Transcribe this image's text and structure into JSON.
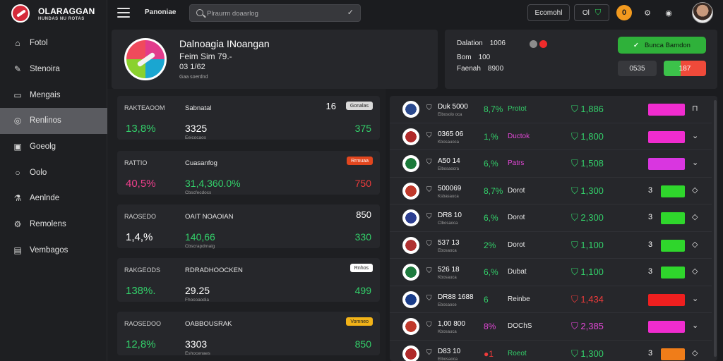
{
  "app": {
    "title": "OLARAGGAN",
    "subtitle": "HUNDAS NU ROTAS"
  },
  "sidebar": {
    "items": [
      {
        "label": "Fotol",
        "icon": "home-icon"
      },
      {
        "label": "Stenoira",
        "icon": "feather-icon"
      },
      {
        "label": "Mengais",
        "icon": "clipboard-icon"
      },
      {
        "label": "Renlinos",
        "icon": "compass-icon"
      },
      {
        "label": "Goeolg",
        "icon": "tablet-icon"
      },
      {
        "label": "Oolo",
        "icon": "search-icon"
      },
      {
        "label": "Aenlnde",
        "icon": "flask-icon"
      },
      {
        "label": "Remolens",
        "icon": "gear-icon"
      },
      {
        "label": "Vembagos",
        "icon": "image-icon"
      }
    ]
  },
  "header": {
    "title": "Panoniae",
    "search_placeholder": "Plraurm doaarlog",
    "btn1": "Ecomohl",
    "btn2": "Ol",
    "notif_count": "0"
  },
  "profile": {
    "name": "Dalnoagia INoangan",
    "line1": "Feim Sim 79.-",
    "line2": "03 1/62",
    "line3": "Gaa soerdnd"
  },
  "stats": {
    "rows": [
      {
        "label": "Dalation",
        "value": "1006"
      },
      {
        "label": "Bom",
        "value": "100"
      },
      {
        "label": "Faenah",
        "value": "8900"
      }
    ],
    "primary_button": "Bunca Bamdon",
    "mini1": "0535",
    "mini2": "187"
  },
  "cards": [
    {
      "h1": "RAKTEAOOM",
      "h2": "Sabnatal",
      "big": "13,8%",
      "bigColor": "#33d06a",
      "val": "3325",
      "valColor": "#ffffff",
      "sub": "Eeicocaos",
      "right": "375",
      "rightColor": "#33d06a",
      "num": "16",
      "badge": "Gonalas",
      "badgeBg": "#d9d9d9",
      "badgeColor": "#222"
    },
    {
      "h1": "RATTIO",
      "h2": "Cuasanfog",
      "big": "40,5%",
      "bigColor": "#ee3f8c",
      "val": "31,4,360.0%",
      "valColor": "#33d06a",
      "sub": "Cbscfecdocs",
      "right": "750",
      "rightColor": "#ef3b3b",
      "num": "",
      "badge": "Rrmuaa",
      "badgeBg": "#e2461e",
      "badgeColor": "#fff"
    },
    {
      "h1": "RAOSEDO",
      "h2": "OAIT NOAOIAN",
      "big": "1,4,%",
      "bigColor": "#ffffff",
      "val": "140,66",
      "valColor": "#33d06a",
      "sub": "Cbscrapdrnaig",
      "right": "330",
      "rightColor": "#33d06a",
      "num": "850",
      "badge": "",
      "badgeBg": "transparent",
      "badgeColor": "#fff"
    },
    {
      "h1": "RAKGEODS",
      "h2": "RDRADHOOCKEN",
      "big": "138%.",
      "bigColor": "#33d06a",
      "val": "29.25",
      "valColor": "#ffffff",
      "sub": "Fhocoaodia",
      "right": "499",
      "rightColor": "#33d06a",
      "num": "",
      "badge": "Rnhos",
      "badgeBg": "#ffffff",
      "badgeColor": "#222"
    },
    {
      "h1": "RAOSEDOO",
      "h2": "OABBOUSRAK",
      "big": "12,8%",
      "bigColor": "#33d06a",
      "val": "3303",
      "valColor": "#ffffff",
      "sub": "Eshocenaes",
      "right": "850",
      "rightColor": "#33d06a",
      "num": "",
      "badge": "Vomneo",
      "badgeBg": "#f2b318",
      "badgeColor": "#222"
    }
  ],
  "list": [
    {
      "t1": "Duk 5000",
      "t2": "Elbosolo oca",
      "pct": "8,7%",
      "pctColor": "#33d06a",
      "tag": "Protot",
      "tagColor": "#33d06a",
      "stat": "1,886",
      "statColor": "#33d06a",
      "mark": "",
      "bar": "#f02ccf",
      "act": "⊓",
      "logo": "#2b4a8f"
    },
    {
      "t1": "0365 06",
      "t2": "Kbosauoca",
      "pct": "1,%",
      "pctColor": "#33d06a",
      "tag": "Ductok",
      "tagColor": "#e247d6",
      "stat": "1,800",
      "statColor": "#33d06a",
      "mark": "",
      "bar": "#f02ccf",
      "act": "⌄",
      "logo": "#b02a2a"
    },
    {
      "t1": "A50 14",
      "t2": "Elbosaocra",
      "pct": "6,%",
      "pctColor": "#33d06a",
      "tag": "Patrs",
      "tagColor": "#e247d6",
      "stat": "1,508",
      "statColor": "#33d06a",
      "mark": "",
      "bar": "#d936e0",
      "act": "⌄",
      "logo": "#1b7a3a"
    },
    {
      "t1": "500069",
      "t2": "Ksbasauca",
      "pct": "8,7%",
      "pctColor": "#33d06a",
      "tag": "Dorot",
      "tagColor": "#e6e6e6",
      "stat": "1,300",
      "statColor": "#33d06a",
      "mark": "3",
      "bar": "#2fd62c",
      "act": "◇",
      "logo": "#c0392b"
    },
    {
      "t1": "DR8 10",
      "t2": "Clbosaoca",
      "pct": "6,%",
      "pctColor": "#33d06a",
      "tag": "Dorot",
      "tagColor": "#e6e6e6",
      "stat": "2,300",
      "statColor": "#33d06a",
      "mark": "3",
      "bar": "#2fd62c",
      "act": "◇",
      "logo": "#2c3e91"
    },
    {
      "t1": "537 13",
      "t2": "Ebosaoca",
      "pct": "2%",
      "pctColor": "#33d06a",
      "tag": "Dorot",
      "tagColor": "#e6e6e6",
      "stat": "1,100",
      "statColor": "#33d06a",
      "mark": "3",
      "bar": "#2fd62c",
      "act": "◇",
      "logo": "#b03030"
    },
    {
      "t1": "526 18",
      "t2": "Kbosauca",
      "pct": "6,%",
      "pctColor": "#33d06a",
      "tag": "Dubat",
      "tagColor": "#e6e6e6",
      "stat": "1,100",
      "statColor": "#33d06a",
      "mark": "3",
      "bar": "#2fd62c",
      "act": "◇",
      "logo": "#1e7a3e"
    },
    {
      "t1": "DR88 1688",
      "t2": "Ebosaoce",
      "pct": "6",
      "pctColor": "#33d06a",
      "tag": "Reinbe",
      "tagColor": "#e6e6e6",
      "stat": "1,434",
      "statColor": "#ef3b3b",
      "mark": "",
      "bar": "#ef1f1f",
      "act": "⌄",
      "logo": "#1a3d8a"
    },
    {
      "t1": "1,00 800",
      "t2": "Kbosauca",
      "pct": "8%",
      "pctColor": "#e247d6",
      "tag": "DOChS",
      "tagColor": "#e6e6e6",
      "stat": "2,385",
      "statColor": "#e247d6",
      "mark": "",
      "bar": "#f02ccf",
      "act": "⌄",
      "logo": "#c0392b"
    },
    {
      "t1": "D83 10",
      "t2": "Elbosaoca",
      "pct": "●1",
      "pctColor": "#ef3b3b",
      "tag": "Roeot",
      "tagColor": "#33d06a",
      "stat": "1,300",
      "statColor": "#33d06a",
      "mark": "3",
      "bar": "#f07d19",
      "act": "◇",
      "logo": "#b02a2a"
    }
  ]
}
